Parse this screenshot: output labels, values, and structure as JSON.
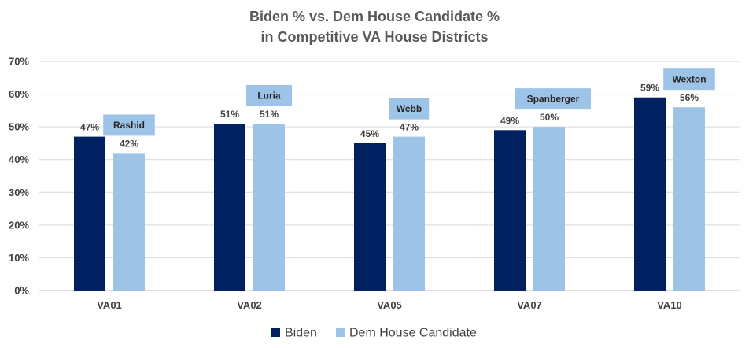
{
  "chart_data": {
    "type": "bar",
    "title_lines": [
      "Biden % vs. Dem House Candidate %",
      "in Competitive VA House Districts"
    ],
    "categories": [
      "VA01",
      "VA02",
      "VA05",
      "VA07",
      "VA10"
    ],
    "series": [
      {
        "name": "Biden",
        "color": "#002060",
        "values": [
          47,
          51,
          45,
          49,
          59
        ],
        "labels": [
          "47%",
          "51%",
          "45%",
          "49%",
          "59%"
        ]
      },
      {
        "name": "Dem House Candidate",
        "color": "#9DC3E6",
        "values": [
          42,
          51,
          47,
          50,
          56
        ],
        "labels": [
          "42%",
          "51%",
          "47%",
          "50%",
          "56%"
        ]
      }
    ],
    "candidates": [
      "Rashid",
      "Luria",
      "Webb",
      "Spanberger",
      "Wexton"
    ],
    "candidate_box_color": "#9DC3E6",
    "ylim": [
      0,
      70
    ],
    "yticks": [
      0,
      10,
      20,
      30,
      40,
      50,
      60,
      70
    ],
    "ytick_labels": [
      "0%",
      "10%",
      "20%",
      "30%",
      "40%",
      "50%",
      "60%",
      "70%"
    ],
    "grid": true,
    "legend_position": "bottom"
  }
}
